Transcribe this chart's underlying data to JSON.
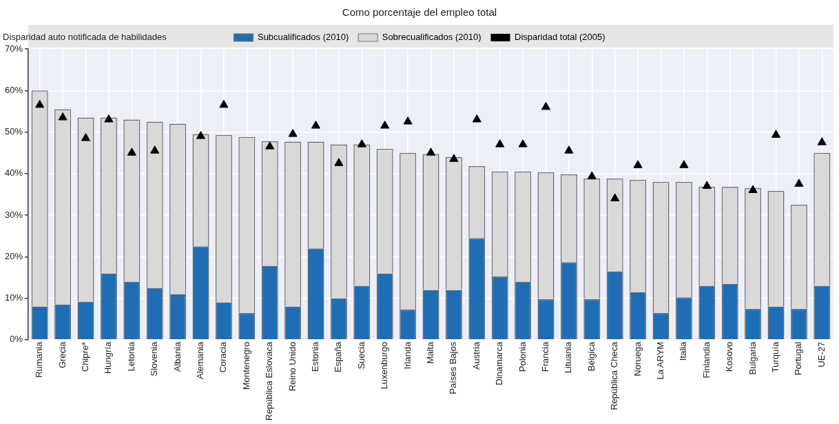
{
  "chart_data": {
    "type": "bar",
    "title": "Como porcentaje del empleo total",
    "ylabel": "Disparidad auto notificada de habilidades",
    "categories": [
      "Rumania",
      "Grecia",
      "Chipre*",
      "Hungría",
      "Letonia",
      "Slovenia",
      "Albania",
      "Alemania",
      "Coracia",
      "Montenegro",
      "República Eslovaca",
      "Reino Unido",
      "Estonia",
      "España",
      "Suecia",
      "Luxenburgo",
      "Irlanda",
      "Malta",
      "Países Bajos",
      "Austria",
      "Dinamarca",
      "Polonia",
      "Francia",
      "Lituania",
      "Bélgica",
      "República Checa",
      "Noruega",
      "La ARYM",
      "Italia",
      "Finlandia",
      "Kosovo",
      "Bulgaria",
      "Turquía",
      "Portugal",
      "UE-27"
    ],
    "stacked": true,
    "series": [
      {
        "name": "Subcualificados (2010)",
        "color": "#1f6db5",
        "values": [
          8,
          8.5,
          9.2,
          16,
          14,
          12.5,
          11,
          22.5,
          9,
          6.5,
          17.8,
          8,
          22,
          10,
          13,
          16,
          7.3,
          12,
          12,
          24.5,
          15.3,
          14,
          9.8,
          18.7,
          9.8,
          16.5,
          11.5,
          6.5,
          10.2,
          13,
          13.5,
          7.5,
          8,
          7.5,
          13
        ]
      },
      {
        "name": "Sobrecualificados (2010)",
        "color": "#d9d9d9",
        "values": [
          52,
          47,
          44.3,
          37.5,
          39,
          40,
          41,
          27,
          40.3,
          42.3,
          30,
          39.7,
          25.7,
          37,
          34,
          30,
          37.7,
          32.7,
          32,
          17.3,
          25.2,
          26.5,
          30.5,
          21.1,
          29,
          22.3,
          27,
          31.5,
          27.8,
          23.8,
          23.3,
          29,
          27.8,
          25,
          32
        ]
      },
      {
        "name": "Disparidad total (2005)",
        "type": "scatter",
        "color": "#000000",
        "values": [
          56.5,
          53.5,
          48.5,
          53,
          45,
          45.5,
          null,
          49,
          56.5,
          null,
          46.5,
          49.5,
          51.5,
          42.5,
          47,
          51.5,
          52.5,
          45,
          43.5,
          53,
          47,
          47,
          56,
          45.5,
          39.3,
          34,
          42,
          null,
          42,
          37,
          null,
          36,
          49.3,
          37.5,
          47.5
        ]
      }
    ],
    "marker": "triangle",
    "ylim": [
      0,
      70
    ],
    "yticks": [
      {
        "value": 0,
        "label": "0%"
      },
      {
        "value": 10,
        "label": "10%"
      },
      {
        "value": 20,
        "label": "20%"
      },
      {
        "value": 30,
        "label": "30%"
      },
      {
        "value": 40,
        "label": "40%"
      },
      {
        "value": 50,
        "label": "50%"
      },
      {
        "value": 60,
        "label": "60%"
      },
      {
        "value": 70,
        "label": "70%"
      }
    ],
    "grid": true,
    "legend": "top"
  }
}
